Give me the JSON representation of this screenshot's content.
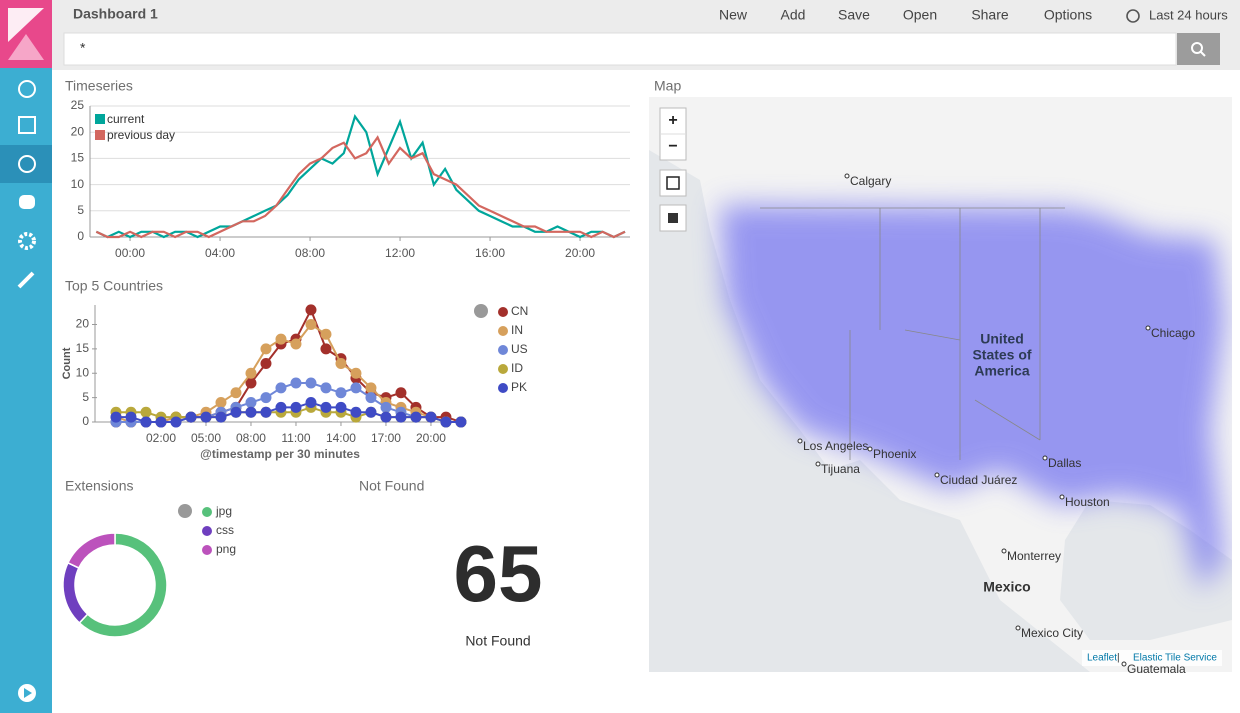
{
  "header": {
    "title": "Dashboard 1",
    "menu": [
      "New",
      "Add",
      "Save",
      "Open",
      "Share",
      "Options"
    ],
    "time": "Last 24 hours"
  },
  "query": "*",
  "chart_data": [
    {
      "type": "line",
      "title": "Timeseries",
      "x": [
        -1.5,
        -1,
        -0.5,
        0,
        0.5,
        1,
        1.5,
        2,
        2.5,
        3,
        3.5,
        4,
        4.5,
        5,
        5.5,
        6,
        6.5,
        7,
        7.5,
        8,
        8.5,
        9,
        9.5,
        10,
        10.5,
        11,
        11.5,
        12,
        12.5,
        13,
        13.5,
        14,
        14.5,
        15,
        15.5,
        16,
        16.5,
        17,
        17.5,
        18,
        18.5,
        19,
        19.5,
        20,
        20.5,
        21,
        21.5,
        22
      ],
      "series": [
        {
          "name": "current",
          "color": "#00a69b",
          "values": [
            1,
            0,
            1,
            0,
            1,
            1,
            0,
            1,
            1,
            0,
            1,
            2,
            2,
            3,
            4,
            5,
            6,
            8,
            11,
            13,
            15,
            14,
            16,
            23,
            20,
            12,
            17,
            22,
            15,
            18,
            10,
            13,
            9,
            7,
            5,
            4,
            3,
            2,
            2,
            1,
            1,
            2,
            1,
            0,
            1,
            1,
            0,
            1
          ]
        },
        {
          "name": "previous day",
          "color": "#d3675f",
          "values": [
            1,
            0,
            0,
            1,
            0,
            1,
            1,
            0,
            1,
            1,
            0,
            1,
            2,
            3,
            3,
            4,
            6,
            9,
            12,
            14,
            15,
            17,
            18,
            15,
            16,
            19,
            14,
            17,
            15,
            16,
            12,
            11,
            10,
            8,
            6,
            5,
            4,
            3,
            2,
            2,
            1,
            1,
            1,
            1,
            0,
            1,
            0,
            1
          ]
        }
      ],
      "xlim": [
        -1.78,
        22.22
      ],
      "xticks": [
        {
          "value": 0,
          "label": "00:00"
        },
        {
          "value": 4,
          "label": "04:00"
        },
        {
          "value": 8,
          "label": "08:00"
        },
        {
          "value": 12,
          "label": "12:00"
        },
        {
          "value": 16,
          "label": "16:00"
        },
        {
          "value": 20,
          "label": "20:00"
        }
      ],
      "ylim": [
        0,
        25
      ],
      "yticks": [
        0,
        5,
        10,
        15,
        20,
        25
      ],
      "grid": true,
      "legend": "top-left"
    },
    {
      "type": "line",
      "title": "Top 5 Countries",
      "markers": true,
      "x_label": "@timestamp per 30 minutes",
      "y_label": "Count",
      "x": [
        -1,
        0,
        1,
        2,
        3,
        4,
        5,
        6,
        7,
        8,
        9,
        10,
        11,
        12,
        13,
        14,
        15,
        16,
        17,
        18,
        19,
        20,
        21,
        22
      ],
      "series": [
        {
          "name": "CN",
          "color": "#a3302b",
          "values": [
            0,
            0,
            0,
            0,
            1,
            1,
            1,
            2,
            3,
            8,
            12,
            16,
            17,
            23,
            15,
            13,
            9,
            6,
            5,
            6,
            3,
            1,
            1,
            0
          ]
        },
        {
          "name": "IN",
          "color": "#d6a05c",
          "values": [
            1,
            0,
            0,
            0,
            1,
            1,
            2,
            4,
            6,
            10,
            15,
            17,
            16,
            20,
            18,
            12,
            10,
            7,
            4,
            3,
            2,
            1,
            0,
            0
          ]
        },
        {
          "name": "US",
          "color": "#6f87d8",
          "values": [
            0,
            0,
            0,
            0,
            0,
            1,
            1,
            2,
            3,
            4,
            5,
            7,
            8,
            8,
            7,
            6,
            7,
            5,
            3,
            2,
            1,
            1,
            0,
            0
          ]
        },
        {
          "name": "ID",
          "color": "#b9a83b",
          "values": [
            2,
            2,
            2,
            1,
            1,
            1,
            1,
            1,
            2,
            2,
            2,
            2,
            2,
            3,
            2,
            2,
            1,
            2,
            1,
            1,
            1,
            1,
            0,
            0
          ]
        },
        {
          "name": "PK",
          "color": "#3f4bc5",
          "values": [
            1,
            1,
            0,
            0,
            0,
            1,
            1,
            1,
            2,
            2,
            2,
            3,
            3,
            4,
            3,
            3,
            2,
            2,
            1,
            1,
            1,
            1,
            0,
            0
          ]
        }
      ],
      "xlim": [
        -2.4,
        22.27
      ],
      "xticks": [
        {
          "value": 2,
          "label": "02:00"
        },
        {
          "value": 5,
          "label": "05:00"
        },
        {
          "value": 8,
          "label": "08:00"
        },
        {
          "value": 11,
          "label": "11:00"
        },
        {
          "value": 14,
          "label": "14:00"
        },
        {
          "value": 17,
          "label": "17:00"
        },
        {
          "value": 20,
          "label": "20:00"
        }
      ],
      "ylim": [
        0,
        24
      ],
      "yticks": [
        0,
        5,
        10,
        15,
        20
      ],
      "grid": false,
      "legend": "right"
    },
    {
      "type": "pie",
      "title": "Extensions",
      "donut": true,
      "categories": [
        "jpg",
        "css",
        "png"
      ],
      "values": [
        62,
        20,
        18
      ],
      "colors": [
        "#57c17b",
        "#6f3fbf",
        "#bc52bc"
      ],
      "legend": "top-right"
    }
  ],
  "metric": {
    "title": "Not Found",
    "value": 65,
    "label": "Not Found"
  },
  "map": {
    "title": "Map",
    "zoom_in": "+",
    "zoom_out": "−",
    "country": [
      "United",
      "States of",
      "America"
    ],
    "labels": [
      "Calgary",
      "Chicago",
      "Los Angeles",
      "Phoenix",
      "Tijuana",
      "Ciudad Juárez",
      "Dallas",
      "Houston",
      "Monterrey",
      "Mexico City",
      "Guatemala"
    ],
    "country2": "Mexico",
    "attribution": [
      "Leaflet",
      "|",
      "Elastic Tile Service"
    ]
  }
}
